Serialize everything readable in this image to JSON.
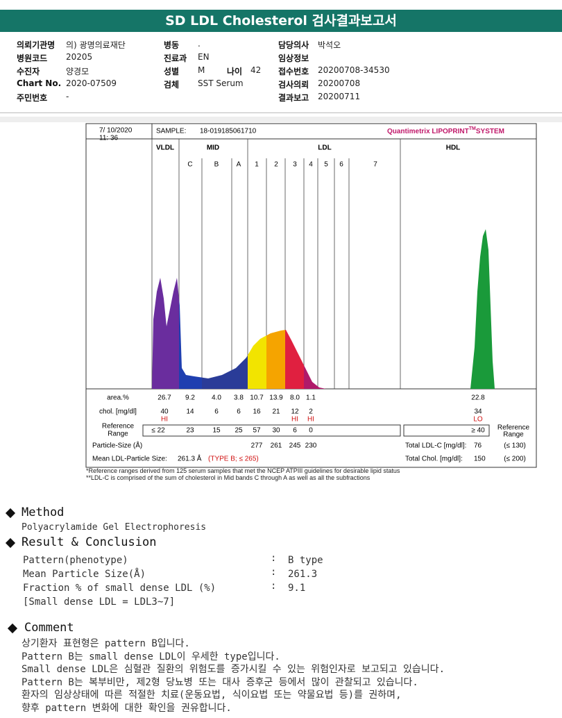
{
  "header": {
    "title": "SD LDL Cholesterol 검사결과보고서"
  },
  "info": {
    "col1": [
      {
        "label": "의뢰기관명",
        "value": "의) 광명의료재단"
      },
      {
        "label": "병원코드",
        "value": "20205"
      },
      {
        "label": "수진자",
        "value": "양경모"
      },
      {
        "label": "Chart No.",
        "value": "2020-07509"
      },
      {
        "label": "주민번호",
        "value": "-"
      }
    ],
    "col2": [
      {
        "label": "병동",
        "value": "."
      },
      {
        "label": "진료과",
        "value": "EN"
      },
      {
        "label": "성별",
        "value": "M"
      },
      {
        "label": "검체",
        "value": "SST Serum"
      }
    ],
    "age": {
      "label": "나이",
      "value": "42"
    },
    "col3": [
      {
        "label": "담당의사",
        "value": "박석오"
      },
      {
        "label": "임상정보"
      },
      {
        "label": "접수번호",
        "value": "20200708-34530"
      },
      {
        "label": "검사의뢰",
        "value": "20200708"
      },
      {
        "label": "결과보고",
        "value": "20200711"
      }
    ]
  },
  "figure": {
    "date": "7/ 10/2020",
    "time": "11: 36",
    "sample_label": "SAMPLE:",
    "sample_id": "18-019185061710",
    "brand": "Quantimetrix LIPOPRINT",
    "brand_tm": "TM",
    "brand_suffix": "SYSTEM",
    "groups": [
      "VLDL",
      "MID",
      "LDL",
      "HDL"
    ],
    "bands": [
      "C",
      "B",
      "A",
      "1",
      "2",
      "3",
      "4",
      "5",
      "6",
      "7"
    ],
    "rows": {
      "area": {
        "label": "area.%",
        "values": [
          "26.7",
          "9.2",
          "4.0",
          "3.8",
          "10.7",
          "13.9",
          "8.0",
          "1.1",
          "22.8"
        ]
      },
      "chol": {
        "label": "chol. [mg/dl]",
        "values": [
          "40",
          "14",
          "6",
          "6",
          "16",
          "21",
          "12",
          "2",
          "34"
        ],
        "flags": [
          "HI",
          null,
          null,
          null,
          null,
          null,
          "HI",
          "HI",
          "LO"
        ]
      },
      "reference": {
        "label": [
          "Reference",
          "Range"
        ],
        "values": [
          "≤ 22",
          "23",
          "15",
          "25",
          "57",
          "30",
          "6",
          "0",
          "≥ 40"
        ]
      },
      "particle": {
        "label": "Particle-Size (Å)",
        "values": [
          "277",
          "261",
          "245",
          "230"
        ]
      }
    },
    "reference_right": [
      "Reference",
      "Range"
    ],
    "totals": [
      {
        "label": "Total LDL-C [mg/dl]:",
        "value": "76",
        "range": "(≤ 130)"
      },
      {
        "label": "Total Chol. [mg/dl]:",
        "value": "150",
        "range": "(≤ 200)"
      }
    ],
    "mean": {
      "label": "Mean LDL-Particle Size:",
      "value": "261.3 Å",
      "type": "(TYPE B; ≤ 265)"
    }
  },
  "footnotes": [
    "*Reference ranges derived from 125 serum samples that met the NCEP ATPIII guidelines for desirable lipid status",
    "**LDL-C is comprised of the sum of cholesterol in Mid bands C through A as well as all the subfractions"
  ],
  "method": {
    "heading": "Method",
    "text": "Polyacrylamide Gel Electrophoresis"
  },
  "result": {
    "heading": "Result & Conclusion",
    "rows": [
      {
        "label": "Pattern(phenotype)",
        "sep": ":",
        "value": "B type"
      },
      {
        "label": "Mean Particle Size(Å)",
        "sep": ":",
        "value": "261.3"
      },
      {
        "label": "Fraction % of small dense LDL (%)",
        "sep": ":",
        "value": "9.1"
      }
    ],
    "note": "[Small dense LDL = LDL3~7]"
  },
  "comment": {
    "heading": "Comment",
    "lines": [
      "상기환자 표현형은 pattern B입니다.",
      "Pattern B는 small dense LDL이 우세한 type입니다.",
      "Small dense LDL은 심혈관 질환의 위험도를 증가시킬 수 있는 위험인자로 보고되고 있습니다.",
      "Pattern B는 복부비만, 제2형 당뇨병 또는 대사 증후군 등에서 많이 관찰되고 있습니다.",
      "환자의 임상상태에 따른 적절한 치료(운동요법, 식이요법 또는 약물요법 등)를 권하며,",
      "향후 pattern 변화에 대한 확인을 권유합니다."
    ]
  }
}
